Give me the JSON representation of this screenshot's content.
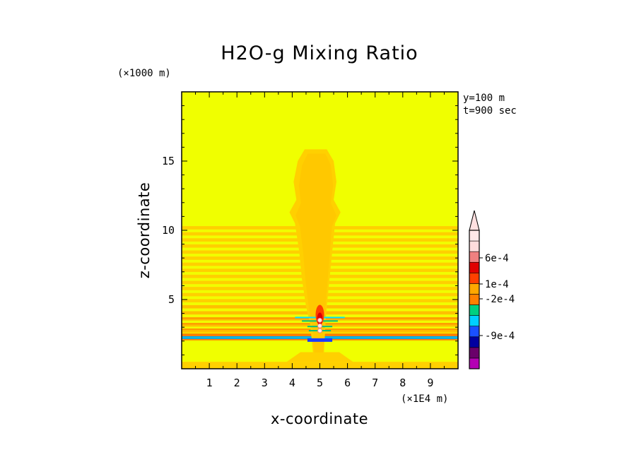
{
  "chart_data": {
    "type": "heatmap",
    "title": "H2O-g Mixing Ratio",
    "xlabel": "x-coordinate",
    "ylabel": "z-coordinate",
    "x_unit": "(×1E4 m)",
    "y_unit": "(×1000 m)",
    "xlim": [
      0,
      10
    ],
    "ylim": [
      0,
      20
    ],
    "x_ticks": [
      "1",
      "2",
      "3",
      "4",
      "5",
      "6",
      "7",
      "8",
      "9"
    ],
    "y_ticks": [
      "5",
      "10",
      "15"
    ],
    "annotations": [
      "y=100 m",
      "t=900 sec"
    ],
    "colorbar": {
      "labels": [
        "6e-4",
        "1e-4",
        "-2e-4",
        "-9e-4"
      ],
      "colors": [
        "#b400b4",
        "#6a006a",
        "#0000a0",
        "#1a50ff",
        "#00d0ff",
        "#00d080",
        "#ff8000",
        "#ffa800",
        "#ff4000",
        "#e00000",
        "#f08080",
        "#ffdcdc",
        "#ffe8e8"
      ],
      "extend": "max"
    },
    "background_color": "#f0ff00",
    "field_summary": "Horizontal alternating yellow/orange layered bands from z≈0 to z≈10.5; a plume centered at x≈5 rising to z≈16; a strong blue negative band near z≈2.3; high positive values (red/pink) in the plume core near z≈3–4"
  }
}
